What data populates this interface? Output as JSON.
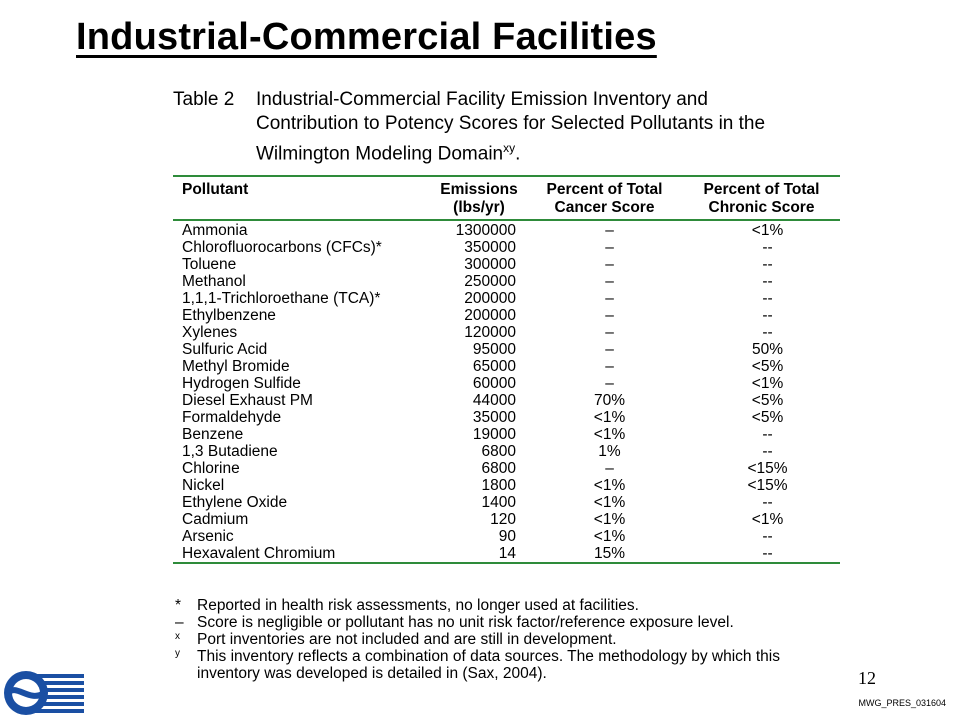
{
  "title": "Industrial-Commercial Facilities",
  "caption": {
    "number": "Table 2",
    "line1": "Industrial-Commercial Facility Emission Inventory and",
    "line2": "Contribution to Potency Scores for Selected Pollutants in the",
    "line3": "Wilmington Modeling Domain",
    "line3_sup": "xy",
    "line3_end": "."
  },
  "table": {
    "headers": {
      "pollutant": "Pollutant",
      "emissions_1": "Emissions",
      "emissions_2": "(lbs/yr)",
      "cancer_1": "Percent of Total",
      "cancer_2": "Cancer Score",
      "chronic_1": "Percent of Total",
      "chronic_2": "Chronic Score"
    },
    "rows": [
      {
        "pollutant": "Ammonia",
        "emissions": "1300000",
        "cancer": "–",
        "chronic": "<1%"
      },
      {
        "pollutant": "Chlorofluorocarbons (CFCs)*",
        "emissions": "350000",
        "cancer": "–",
        "chronic": "--"
      },
      {
        "pollutant": "Toluene",
        "emissions": "300000",
        "cancer": "–",
        "chronic": "--"
      },
      {
        "pollutant": "Methanol",
        "emissions": "250000",
        "cancer": "–",
        "chronic": "--"
      },
      {
        "pollutant": "1,1,1-Trichloroethane (TCA)*",
        "emissions": "200000",
        "cancer": "–",
        "chronic": "--"
      },
      {
        "pollutant": "Ethylbenzene",
        "emissions": "200000",
        "cancer": "–",
        "chronic": "--"
      },
      {
        "pollutant": "Xylenes",
        "emissions": "120000",
        "cancer": "–",
        "chronic": "--"
      },
      {
        "pollutant": "Sulfuric Acid",
        "emissions": "95000",
        "cancer": "–",
        "chronic": "50%"
      },
      {
        "pollutant": "Methyl Bromide",
        "emissions": "65000",
        "cancer": "–",
        "chronic": "<5%"
      },
      {
        "pollutant": "Hydrogen Sulfide",
        "emissions": "60000",
        "cancer": "–",
        "chronic": "<1%"
      },
      {
        "pollutant": "Diesel Exhaust PM",
        "emissions": "44000",
        "cancer": "70%",
        "chronic": "<5%"
      },
      {
        "pollutant": "Formaldehyde",
        "emissions": "35000",
        "cancer": "<1%",
        "chronic": "<5%"
      },
      {
        "pollutant": "Benzene",
        "emissions": "19000",
        "cancer": "<1%",
        "chronic": "--"
      },
      {
        "pollutant": "1,3 Butadiene",
        "emissions": "6800",
        "cancer": "1%",
        "chronic": "--"
      },
      {
        "pollutant": "Chlorine",
        "emissions": "6800",
        "cancer": "–",
        "chronic": "<15%"
      },
      {
        "pollutant": "Nickel",
        "emissions": "1800",
        "cancer": "<1%",
        "chronic": "<15%"
      },
      {
        "pollutant": "Ethylene Oxide",
        "emissions": "1400",
        "cancer": "<1%",
        "chronic": "--"
      },
      {
        "pollutant": "Cadmium",
        "emissions": "120",
        "cancer": "<1%",
        "chronic": "<1%"
      },
      {
        "pollutant": "Arsenic",
        "emissions": "90",
        "cancer": "<1%",
        "chronic": "--"
      },
      {
        "pollutant": "Hexavalent Chromium",
        "emissions": "14",
        "cancer": "15%",
        "chronic": "--"
      }
    ]
  },
  "notes": {
    "n1_mark": "*",
    "n1_text": "Reported in health risk assessments, no longer used at facilities.",
    "n2_mark": "–",
    "n2_text": "Score is negligible or pollutant has no unit risk factor/reference exposure level.",
    "n3_mark": "x",
    "n3_text": "Port inventories are not included and are still in development.",
    "n4_mark": "y",
    "n4_text": "This inventory reflects a combination of data sources.  The methodology by which this",
    "n4_cont": "inventory was developed is detailed in (Sax, 2004)."
  },
  "page_number": "12",
  "doc_id": "MWG_PRES_031604",
  "colors": {
    "rule": "#2e8b3a",
    "logo_blue": "#1a4fa3"
  },
  "logo_icon": "agency-logo-icon"
}
